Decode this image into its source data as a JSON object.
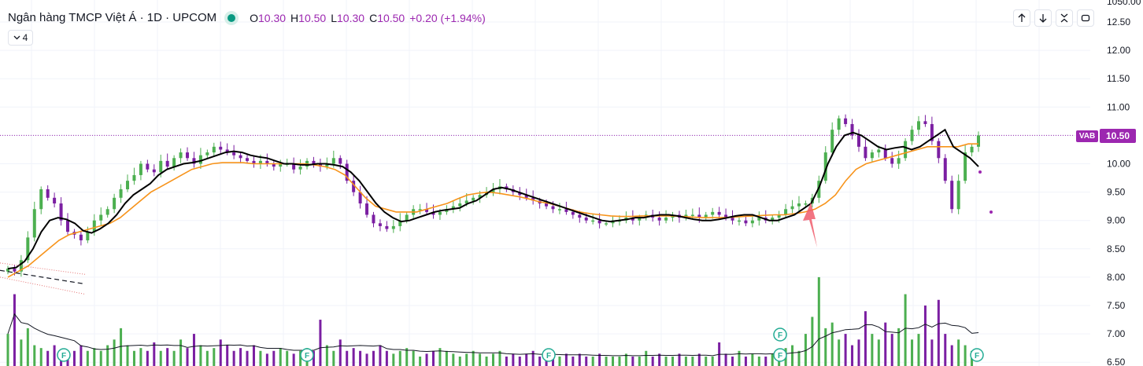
{
  "header": {
    "title": "Ngân hàng TMCP Việt Á · 1D · UPCOM",
    "open_label": "O",
    "open": "10.30",
    "high_label": "H",
    "high": "10.50",
    "low_label": "L",
    "low": "10.30",
    "close_label": "C",
    "close": "10.50",
    "change": "+0.20 (+1.94%)",
    "indicator_count": "4"
  },
  "toolbar": {
    "icons": [
      "arrow-up-icon",
      "arrow-down-icon",
      "collapse-icon",
      "fullscreen-icon"
    ]
  },
  "price_badge": {
    "symbol": "VAB",
    "value": "10.50"
  },
  "colors": {
    "up": "#4caf50",
    "down": "#7b1fa2",
    "ma_fast": "#000000",
    "ma_slow": "#f7931a",
    "accent": "#9c27b0",
    "arrow": "#f05d6c"
  },
  "chart_data": {
    "type": "candlestick",
    "y_axis": {
      "min": 6.5,
      "max": 12.5,
      "ticks": [
        "12.50",
        "12.00",
        "11.50",
        "11.00",
        "10.50",
        "10.00",
        "9.50",
        "9.00",
        "8.50",
        "8.00",
        "7.50",
        "7.00",
        "6.50"
      ],
      "top_partial_label": "1050.00"
    },
    "last_price": 10.5,
    "close_series": [
      8.15,
      8.1,
      8.3,
      8.7,
      9.2,
      9.55,
      9.4,
      9.3,
      9.0,
      8.8,
      8.75,
      8.65,
      8.8,
      9.0,
      9.1,
      9.2,
      9.4,
      9.55,
      9.7,
      9.8,
      10.0,
      9.9,
      9.85,
      10.05,
      9.95,
      10.1,
      10.2,
      10.1,
      10.0,
      10.15,
      10.2,
      10.3,
      10.25,
      10.2,
      10.15,
      10.1,
      10.05,
      10.0,
      10.05,
      10.0,
      9.95,
      10.0,
      10.0,
      9.9,
      9.95,
      10.05,
      10.0,
      9.95,
      10.0,
      10.1,
      10.0,
      9.7,
      9.5,
      9.3,
      9.1,
      8.95,
      8.9,
      8.85,
      8.9,
      9.0,
      9.1,
      9.2,
      9.2,
      9.15,
      9.1,
      9.15,
      9.2,
      9.25,
      9.3,
      9.35,
      9.4,
      9.45,
      9.5,
      9.55,
      9.6,
      9.55,
      9.5,
      9.45,
      9.4,
      9.35,
      9.3,
      9.25,
      9.2,
      9.2,
      9.15,
      9.1,
      9.05,
      9.0,
      9.0,
      8.95,
      8.95,
      9.0,
      9.0,
      9.05,
      9.0,
      9.05,
      9.1,
      9.05,
      9.0,
      9.05,
      9.1,
      9.05,
      9.1,
      9.1,
      9.05,
      9.1,
      9.15,
      9.1,
      9.05,
      9.0,
      9.0,
      8.95,
      9.0,
      9.05,
      9.0,
      9.05,
      9.1,
      9.2,
      9.25,
      9.3,
      9.3,
      9.4,
      9.7,
      10.2,
      10.6,
      10.8,
      10.7,
      10.5,
      10.3,
      10.1,
      10.2,
      10.25,
      10.1,
      10.0,
      10.1,
      10.4,
      10.6,
      10.75,
      10.7,
      10.4,
      10.1,
      9.7,
      9.2,
      9.7,
      10.2,
      10.3,
      10.5
    ],
    "volume_series": [
      7.0,
      7.7,
      6.9,
      7.1,
      6.8,
      6.75,
      6.7,
      6.8,
      6.7,
      6.65,
      6.7,
      6.8,
      6.7,
      6.75,
      6.7,
      6.8,
      6.9,
      7.1,
      6.8,
      6.7,
      6.75,
      6.7,
      6.85,
      6.7,
      6.75,
      6.7,
      6.9,
      6.75,
      7.0,
      6.8,
      6.7,
      6.75,
      6.9,
      6.8,
      6.7,
      6.75,
      6.7,
      6.8,
      6.7,
      6.65,
      6.7,
      6.75,
      6.7,
      6.65,
      6.7,
      6.75,
      6.7,
      7.25,
      6.8,
      6.7,
      6.9,
      6.7,
      6.75,
      6.7,
      6.65,
      6.7,
      6.8,
      6.7,
      6.65,
      6.7,
      6.75,
      6.7,
      6.6,
      6.65,
      6.7,
      6.75,
      6.7,
      6.65,
      6.6,
      6.65,
      6.7,
      6.65,
      6.6,
      6.65,
      6.7,
      6.6,
      6.65,
      6.6,
      6.65,
      6.7,
      6.6,
      6.65,
      6.6,
      6.6,
      6.65,
      6.6,
      6.65,
      6.6,
      6.6,
      6.65,
      6.6,
      6.6,
      6.6,
      6.65,
      6.6,
      6.6,
      6.7,
      6.6,
      6.65,
      6.6,
      6.6,
      6.65,
      6.6,
      6.6,
      6.65,
      6.6,
      6.6,
      6.85,
      6.65,
      6.6,
      6.7,
      6.6,
      6.65,
      6.6,
      6.6,
      6.65,
      6.7,
      6.75,
      6.8,
      6.7,
      7.0,
      7.3,
      8.0,
      7.1,
      7.2,
      6.9,
      7.0,
      6.8,
      6.9,
      7.4,
      7.0,
      6.9,
      7.2,
      7.0,
      7.1,
      7.7,
      6.9,
      7.0,
      7.5,
      6.9,
      7.6,
      7.0,
      6.8,
      6.9,
      6.8,
      6.7
    ],
    "ma_fast_series": [
      8.15,
      8.17,
      8.28,
      8.5,
      8.8,
      9.0,
      9.05,
      9.02,
      8.95,
      8.82,
      8.78,
      8.85,
      8.95,
      9.1,
      9.3,
      9.45,
      9.55,
      9.65,
      9.8,
      9.9,
      9.95,
      10.0,
      10.02,
      10.05,
      10.1,
      10.15,
      10.2,
      10.22,
      10.2,
      10.15,
      10.12,
      10.1,
      10.05,
      10.0,
      10.0,
      9.98,
      9.98,
      10.0,
      10.0,
      9.98,
      9.95,
      9.85,
      9.7,
      9.5,
      9.3,
      9.15,
      9.05,
      8.98,
      9.0,
      9.05,
      9.1,
      9.15,
      9.18,
      9.2,
      9.22,
      9.3,
      9.35,
      9.45,
      9.55,
      9.58,
      9.55,
      9.5,
      9.45,
      9.4,
      9.35,
      9.3,
      9.25,
      9.2,
      9.15,
      9.1,
      9.05,
      9.0,
      8.98,
      9.0,
      9.02,
      9.05,
      9.05,
      9.08,
      9.1,
      9.1,
      9.08,
      9.05,
      9.02,
      9.0,
      9.0,
      9.02,
      9.05,
      9.08,
      9.1,
      9.1,
      9.05,
      9.0,
      9.0,
      9.05,
      9.1,
      9.2,
      9.3,
      9.6,
      10.0,
      10.3,
      10.5,
      10.55,
      10.5,
      10.4,
      10.3,
      10.25,
      10.28,
      10.3,
      10.25,
      10.3,
      10.4,
      10.5,
      10.6,
      10.3,
      10.2,
      10.1,
      9.95
    ],
    "ma_slow_series": [
      8.0,
      8.1,
      8.2,
      8.35,
      8.5,
      8.65,
      8.75,
      8.8,
      8.85,
      8.9,
      8.95,
      9.05,
      9.2,
      9.35,
      9.5,
      9.6,
      9.7,
      9.8,
      9.9,
      9.95,
      10.0,
      10.02,
      10.02,
      10.02,
      10.0,
      10.0,
      10.0,
      10.0,
      10.0,
      10.0,
      9.98,
      9.95,
      9.9,
      9.8,
      9.6,
      9.4,
      9.25,
      9.2,
      9.15,
      9.15,
      9.15,
      9.2,
      9.25,
      9.3,
      9.38,
      9.45,
      9.48,
      9.5,
      9.48,
      9.45,
      9.42,
      9.38,
      9.33,
      9.3,
      9.25,
      9.2,
      9.15,
      9.12,
      9.1,
      9.08,
      9.07,
      9.07,
      9.08,
      9.08,
      9.08,
      9.08,
      9.07,
      9.06,
      9.05,
      9.05,
      9.05,
      9.06,
      9.07,
      9.08,
      9.09,
      9.1,
      9.1,
      9.12,
      9.15,
      9.2,
      9.3,
      9.45,
      9.7,
      9.9,
      10.0,
      10.05,
      10.1,
      10.15,
      10.2,
      10.25,
      10.3,
      10.3,
      10.3,
      10.3,
      10.35,
      10.35
    ]
  }
}
